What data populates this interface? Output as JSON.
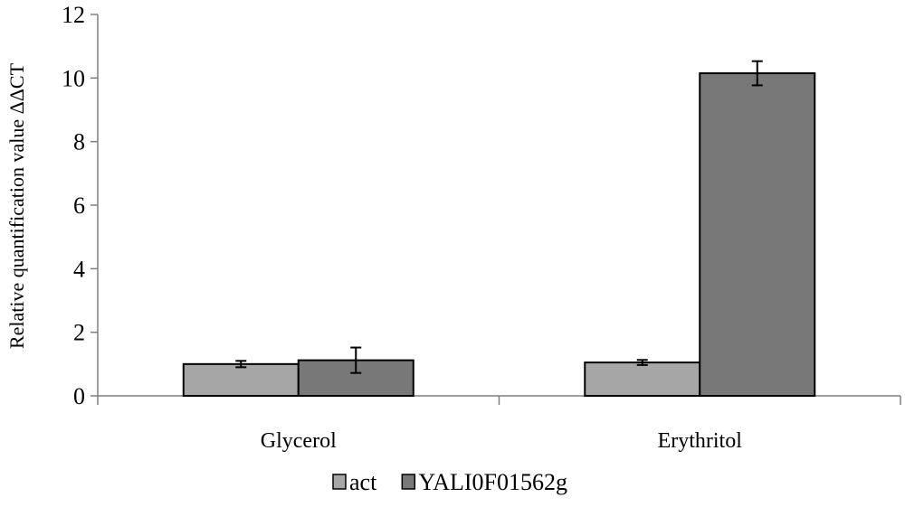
{
  "chart_data": {
    "type": "bar",
    "title": "",
    "xlabel": "",
    "ylabel": "Relative quantification value ΔΔCT",
    "ylim": [
      0,
      12
    ],
    "yticks": [
      "0",
      "2",
      "4",
      "6",
      "8",
      "10",
      "12"
    ],
    "categories": [
      "Glycerol",
      "Erythritol"
    ],
    "series": [
      {
        "name": "act",
        "color": "#a6a6a6",
        "values": [
          1.0,
          1.05
        ],
        "errors": [
          0.1,
          0.08
        ]
      },
      {
        "name": "YALI0F01562g",
        "color": "#787878",
        "values": [
          1.12,
          10.15
        ],
        "errors": [
          0.4,
          0.38
        ]
      }
    ],
    "grid": false,
    "legend_position": "bottom"
  }
}
